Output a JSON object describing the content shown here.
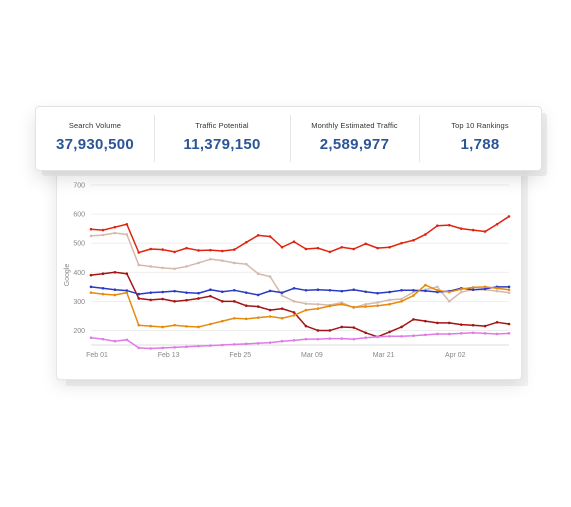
{
  "metrics": [
    {
      "label": "Search Volume",
      "value": "37,930,500"
    },
    {
      "label": "Traffic Potential",
      "value": "11,379,150"
    },
    {
      "label": "Monthly Estimated Traffic",
      "value": "2,589,977"
    },
    {
      "label": "Top 10 Rankings",
      "value": "1,788"
    }
  ],
  "colors": {
    "metric_value": "#2b5597",
    "grid": "#e9e9e9",
    "axis_text": "#888888"
  },
  "chart_data": {
    "type": "line",
    "title": "",
    "xlabel": "",
    "ylabel": "Google",
    "ylim": [
      150,
      700
    ],
    "yticks": [
      200,
      300,
      400,
      500,
      600,
      700
    ],
    "xlim": [
      0,
      70
    ],
    "xtick_positions": [
      1,
      13,
      25,
      37,
      49,
      61
    ],
    "xtick_labels": [
      "Feb 01",
      "Feb 13",
      "Feb 25",
      "Mar 09",
      "Mar 21",
      "Apr 02"
    ],
    "grid": true,
    "series": [
      {
        "color": "#e02410",
        "x": [
          0,
          2,
          4,
          6,
          8,
          10,
          12,
          14,
          16,
          18,
          20,
          22,
          24,
          26,
          28,
          30,
          32,
          34,
          36,
          38,
          40,
          42,
          44,
          46,
          48,
          50,
          52,
          54,
          56,
          58,
          60,
          62,
          64,
          66,
          68,
          70
        ],
        "values": [
          548,
          545,
          555,
          565,
          468,
          480,
          478,
          470,
          483,
          475,
          476,
          473,
          478,
          503,
          527,
          523,
          486,
          505,
          480,
          483,
          470,
          486,
          480,
          498,
          483,
          486,
          500,
          510,
          530,
          560,
          562,
          550,
          545,
          540,
          565,
          592
        ]
      },
      {
        "color": "#d5b9ad",
        "x": [
          0,
          2,
          4,
          6,
          8,
          10,
          12,
          14,
          16,
          18,
          20,
          22,
          24,
          26,
          28,
          30,
          32,
          34,
          36,
          38,
          40,
          42,
          44,
          46,
          48,
          50,
          52,
          54,
          56,
          58,
          60,
          62,
          64,
          66,
          68,
          70
        ],
        "values": [
          525,
          528,
          535,
          530,
          425,
          420,
          415,
          412,
          420,
          432,
          445,
          440,
          432,
          428,
          395,
          385,
          320,
          300,
          292,
          290,
          287,
          296,
          278,
          290,
          296,
          305,
          308,
          332,
          340,
          350,
          300,
          332,
          340,
          340,
          335,
          330
        ]
      },
      {
        "color": "#a51414",
        "x": [
          0,
          2,
          4,
          6,
          8,
          10,
          12,
          14,
          16,
          18,
          20,
          22,
          24,
          26,
          28,
          30,
          32,
          34,
          36,
          38,
          40,
          42,
          44,
          46,
          48,
          50,
          52,
          54,
          56,
          58,
          60,
          62,
          64,
          66,
          68,
          70
        ],
        "values": [
          390,
          395,
          400,
          395,
          310,
          305,
          308,
          300,
          304,
          310,
          318,
          300,
          300,
          285,
          282,
          270,
          275,
          262,
          215,
          200,
          200,
          212,
          210,
          192,
          178,
          195,
          212,
          238,
          232,
          226,
          226,
          220,
          218,
          215,
          228,
          222
        ]
      },
      {
        "color": "#2a3bc2",
        "x": [
          0,
          2,
          4,
          6,
          8,
          10,
          12,
          14,
          16,
          18,
          20,
          22,
          24,
          26,
          28,
          30,
          32,
          34,
          36,
          38,
          40,
          42,
          44,
          46,
          48,
          50,
          52,
          54,
          56,
          58,
          60,
          62,
          64,
          66,
          68,
          70
        ],
        "values": [
          350,
          345,
          340,
          337,
          325,
          330,
          332,
          335,
          330,
          328,
          340,
          333,
          338,
          330,
          322,
          336,
          330,
          345,
          338,
          340,
          338,
          335,
          340,
          333,
          328,
          332,
          338,
          338,
          336,
          332,
          335,
          345,
          340,
          343,
          350,
          350
        ]
      },
      {
        "color": "#e68a10",
        "x": [
          0,
          2,
          4,
          6,
          8,
          10,
          12,
          14,
          16,
          18,
          20,
          22,
          24,
          26,
          28,
          30,
          32,
          34,
          36,
          38,
          40,
          42,
          44,
          46,
          48,
          50,
          52,
          54,
          56,
          58,
          60,
          62,
          64,
          66,
          68,
          70
        ],
        "values": [
          330,
          325,
          322,
          330,
          218,
          215,
          212,
          218,
          214,
          212,
          222,
          232,
          242,
          240,
          244,
          248,
          242,
          252,
          270,
          275,
          284,
          290,
          280,
          282,
          285,
          290,
          300,
          320,
          356,
          338,
          332,
          342,
          348,
          350,
          345,
          340
        ]
      },
      {
        "color": "#e07ae5",
        "x": [
          0,
          2,
          4,
          6,
          8,
          10,
          12,
          14,
          16,
          18,
          20,
          22,
          24,
          26,
          28,
          30,
          32,
          34,
          36,
          38,
          40,
          42,
          44,
          46,
          48,
          50,
          52,
          54,
          56,
          58,
          60,
          62,
          64,
          66,
          68,
          70
        ],
        "values": [
          175,
          170,
          163,
          168,
          140,
          138,
          140,
          142,
          144,
          146,
          148,
          150,
          152,
          154,
          156,
          158,
          163,
          166,
          170,
          170,
          172,
          172,
          170,
          175,
          178,
          180,
          180,
          182,
          185,
          188,
          188,
          190,
          192,
          190,
          188,
          190
        ]
      }
    ]
  }
}
